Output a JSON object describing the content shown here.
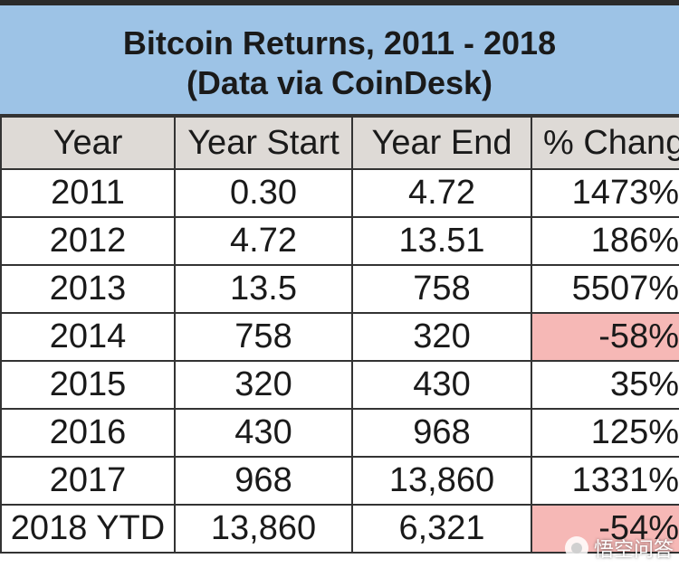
{
  "title": "Bitcoin Returns, 2011 - 2018",
  "subtitle": "(Data via CoinDesk)",
  "colors": {
    "title_bg": "#9dc3e6",
    "header_bg": "#dedad6",
    "negative_bg": "#f6b8b6"
  },
  "chart_data": {
    "type": "table",
    "title": "Bitcoin Returns, 2011 - 2018",
    "subtitle": "(Data via CoinDesk)",
    "columns": [
      "Year",
      "Year Start",
      "Year End",
      "% Chang"
    ],
    "rows": [
      [
        "2011",
        "0.30",
        "4.72",
        "1473%"
      ],
      [
        "2012",
        "4.72",
        "13.51",
        "186%"
      ],
      [
        "2013",
        "13.5",
        "758",
        "5507%"
      ],
      [
        "2014",
        "758",
        "320",
        "-58%"
      ],
      [
        "2015",
        "320",
        "430",
        "35%"
      ],
      [
        "2016",
        "430",
        "968",
        "125%"
      ],
      [
        "2017",
        "968",
        "13,860",
        "1331%"
      ],
      [
        "2018 YTD",
        "13,860",
        "6,321",
        "-54%"
      ]
    ],
    "highlighted_rows": [
      3,
      7
    ]
  },
  "watermark": {
    "text": "悟空问答",
    "icon": "wukong-logo-icon"
  }
}
